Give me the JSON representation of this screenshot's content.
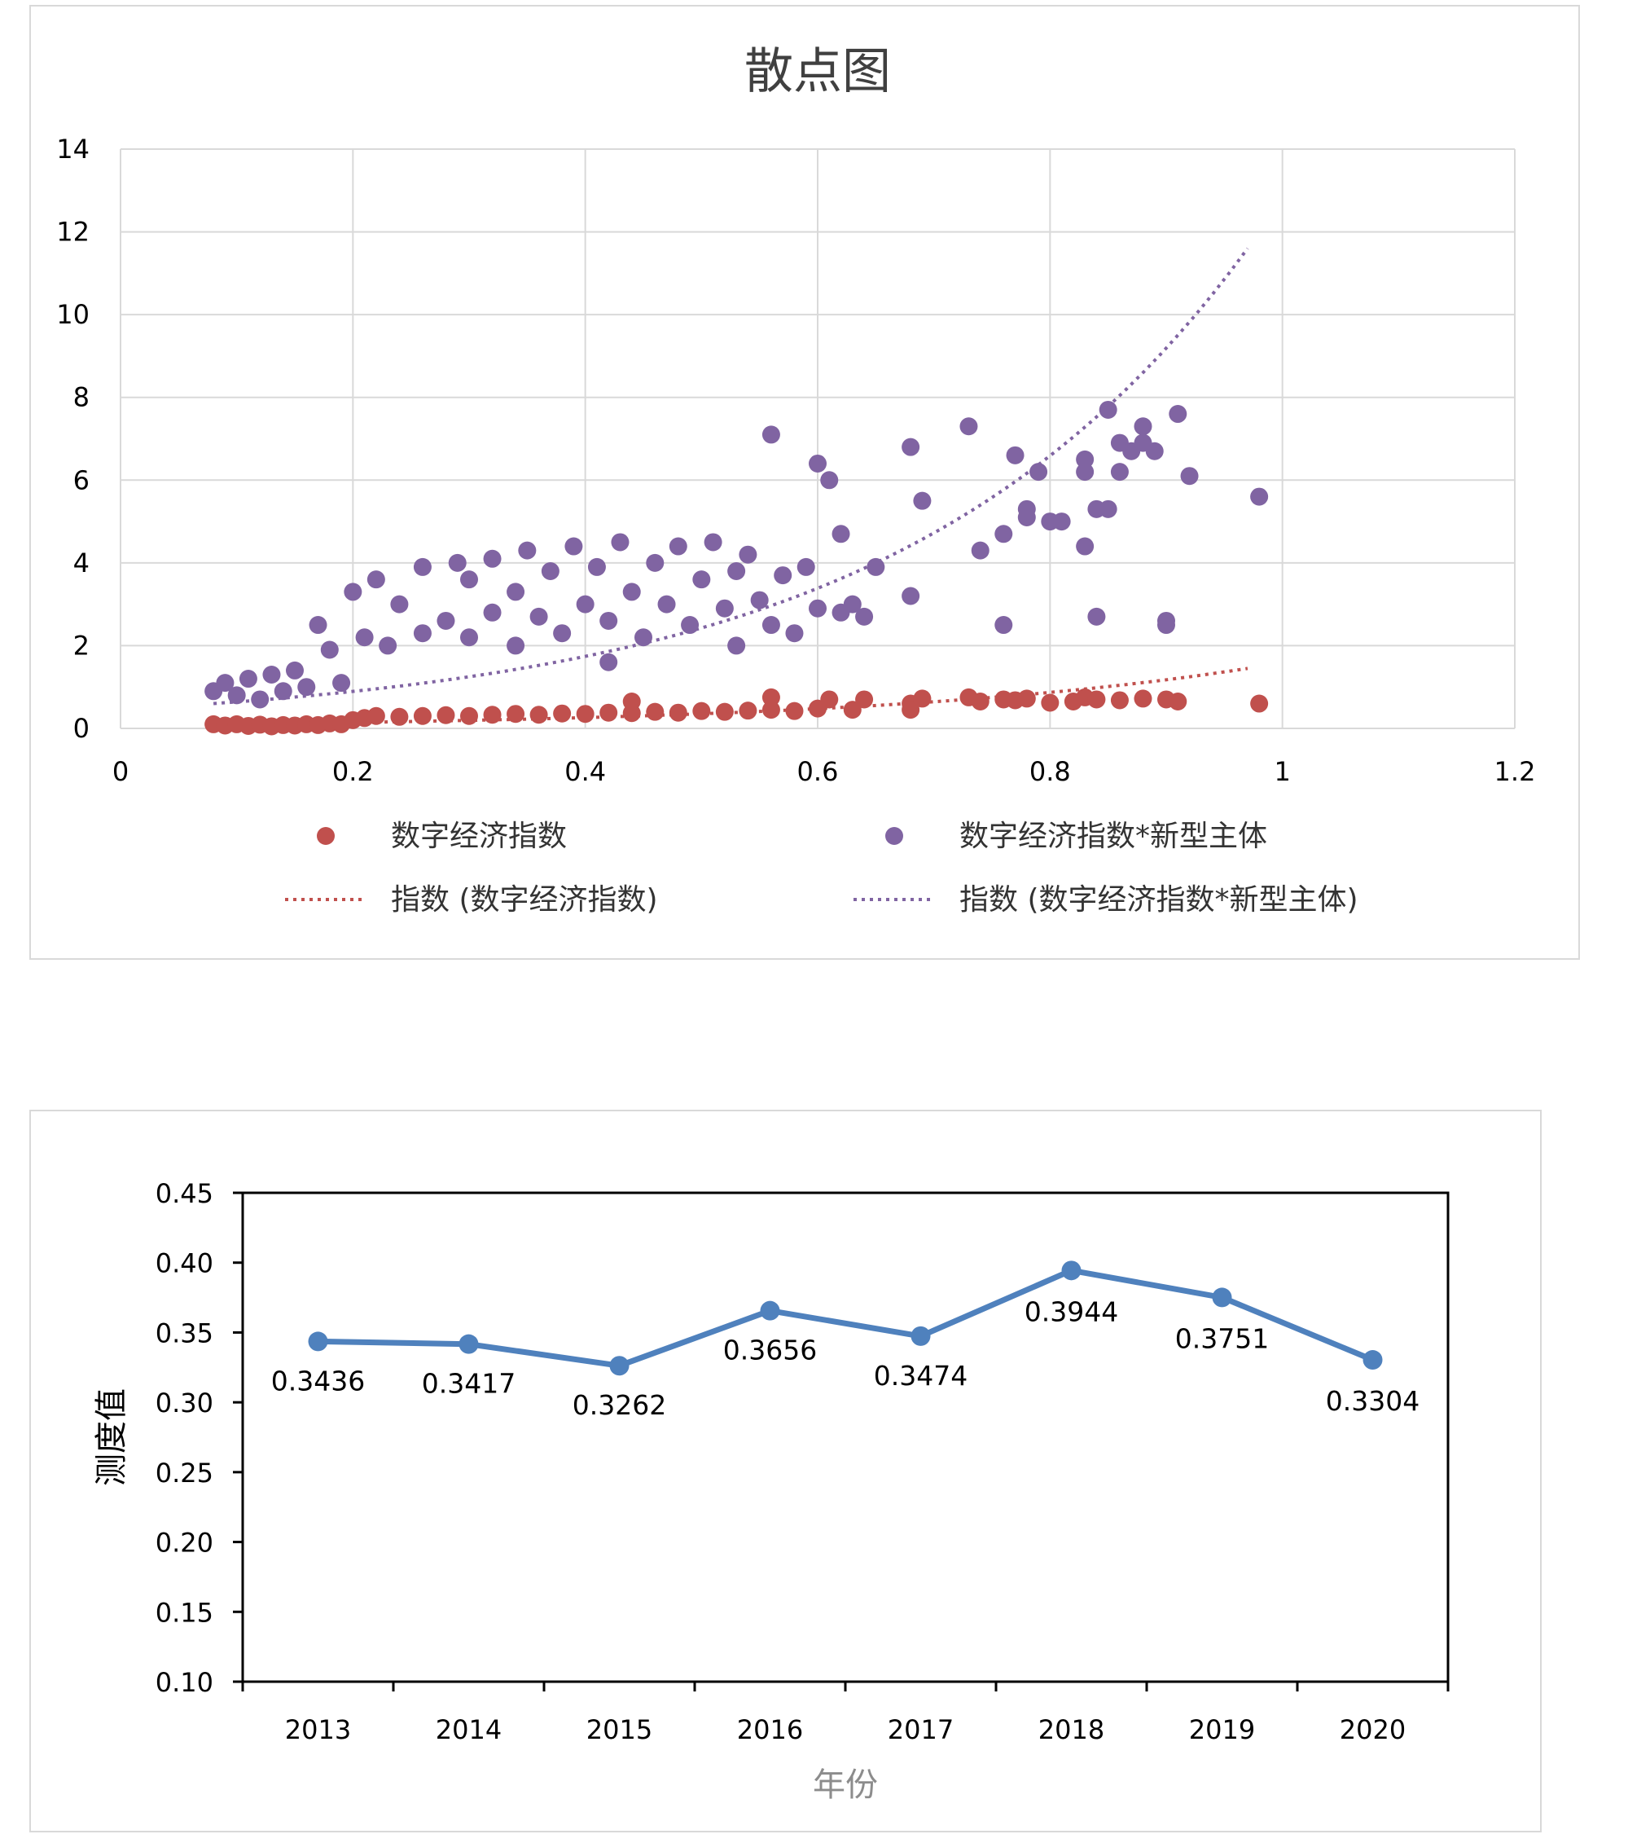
{
  "chart_data": [
    {
      "type": "scatter",
      "title": "散点图",
      "xlabel": "",
      "ylabel": "",
      "xlim": [
        0,
        1.2
      ],
      "ylim": [
        0,
        14
      ],
      "x_ticks": [
        "0",
        "0.2",
        "0.4",
        "0.6",
        "0.8",
        "1",
        "1.2"
      ],
      "y_ticks": [
        "0",
        "2",
        "4",
        "6",
        "8",
        "10",
        "12",
        "14"
      ],
      "grid": true,
      "legend": [
        {
          "label": "数字经济指数",
          "type": "marker",
          "color": "#c0504d"
        },
        {
          "label": "数字经济指数*新型主体",
          "type": "marker",
          "color": "#8064a2"
        },
        {
          "label": "指数 (数字经济指数)",
          "type": "dotted-line",
          "color": "#c0504d"
        },
        {
          "label": "指数 (数字经济指数*新型主体)",
          "type": "dotted-line",
          "color": "#8064a2"
        }
      ],
      "series": [
        {
          "name": "数字经济指数",
          "color": "#c0504d",
          "points": [
            [
              0.08,
              0.1
            ],
            [
              0.09,
              0.07
            ],
            [
              0.1,
              0.1
            ],
            [
              0.11,
              0.06
            ],
            [
              0.12,
              0.09
            ],
            [
              0.13,
              0.05
            ],
            [
              0.14,
              0.08
            ],
            [
              0.15,
              0.07
            ],
            [
              0.16,
              0.1
            ],
            [
              0.17,
              0.08
            ],
            [
              0.18,
              0.12
            ],
            [
              0.19,
              0.1
            ],
            [
              0.2,
              0.2
            ],
            [
              0.21,
              0.25
            ],
            [
              0.22,
              0.3
            ],
            [
              0.24,
              0.28
            ],
            [
              0.26,
              0.3
            ],
            [
              0.28,
              0.32
            ],
            [
              0.3,
              0.3
            ],
            [
              0.32,
              0.33
            ],
            [
              0.34,
              0.35
            ],
            [
              0.36,
              0.33
            ],
            [
              0.38,
              0.36
            ],
            [
              0.4,
              0.35
            ],
            [
              0.42,
              0.38
            ],
            [
              0.44,
              0.37
            ],
            [
              0.44,
              0.65
            ],
            [
              0.46,
              0.4
            ],
            [
              0.48,
              0.38
            ],
            [
              0.5,
              0.42
            ],
            [
              0.52,
              0.4
            ],
            [
              0.54,
              0.43
            ],
            [
              0.56,
              0.45
            ],
            [
              0.56,
              0.75
            ],
            [
              0.58,
              0.42
            ],
            [
              0.6,
              0.48
            ],
            [
              0.61,
              0.7
            ],
            [
              0.63,
              0.45
            ],
            [
              0.64,
              0.7
            ],
            [
              0.68,
              0.6
            ],
            [
              0.68,
              0.45
            ],
            [
              0.69,
              0.72
            ],
            [
              0.73,
              0.75
            ],
            [
              0.74,
              0.65
            ],
            [
              0.76,
              0.7
            ],
            [
              0.77,
              0.68
            ],
            [
              0.78,
              0.72
            ],
            [
              0.8,
              0.62
            ],
            [
              0.82,
              0.65
            ],
            [
              0.83,
              0.75
            ],
            [
              0.84,
              0.7
            ],
            [
              0.86,
              0.68
            ],
            [
              0.88,
              0.72
            ],
            [
              0.9,
              0.7
            ],
            [
              0.91,
              0.65
            ],
            [
              0.98,
              0.6
            ]
          ]
        },
        {
          "name": "数字经济指数*新型主体",
          "color": "#8064a2",
          "points": [
            [
              0.08,
              0.9
            ],
            [
              0.09,
              1.1
            ],
            [
              0.1,
              0.8
            ],
            [
              0.11,
              1.2
            ],
            [
              0.12,
              0.7
            ],
            [
              0.13,
              1.3
            ],
            [
              0.14,
              0.9
            ],
            [
              0.15,
              1.4
            ],
            [
              0.16,
              1.0
            ],
            [
              0.17,
              2.5
            ],
            [
              0.18,
              1.9
            ],
            [
              0.19,
              1.1
            ],
            [
              0.2,
              3.3
            ],
            [
              0.21,
              2.2
            ],
            [
              0.22,
              3.6
            ],
            [
              0.23,
              2.0
            ],
            [
              0.24,
              3.0
            ],
            [
              0.26,
              2.3
            ],
            [
              0.26,
              3.9
            ],
            [
              0.28,
              2.6
            ],
            [
              0.29,
              4.0
            ],
            [
              0.3,
              2.2
            ],
            [
              0.3,
              3.6
            ],
            [
              0.32,
              2.8
            ],
            [
              0.32,
              4.1
            ],
            [
              0.34,
              2.0
            ],
            [
              0.34,
              3.3
            ],
            [
              0.35,
              4.3
            ],
            [
              0.36,
              2.7
            ],
            [
              0.37,
              3.8
            ],
            [
              0.38,
              2.3
            ],
            [
              0.39,
              4.4
            ],
            [
              0.4,
              3.0
            ],
            [
              0.41,
              3.9
            ],
            [
              0.42,
              1.6
            ],
            [
              0.42,
              2.6
            ],
            [
              0.43,
              4.5
            ],
            [
              0.44,
              3.3
            ],
            [
              0.45,
              2.2
            ],
            [
              0.46,
              4.0
            ],
            [
              0.47,
              3.0
            ],
            [
              0.48,
              4.4
            ],
            [
              0.49,
              2.5
            ],
            [
              0.5,
              3.6
            ],
            [
              0.51,
              4.5
            ],
            [
              0.52,
              2.9
            ],
            [
              0.53,
              2.0
            ],
            [
              0.53,
              3.8
            ],
            [
              0.54,
              4.2
            ],
            [
              0.55,
              3.1
            ],
            [
              0.56,
              2.5
            ],
            [
              0.56,
              7.1
            ],
            [
              0.57,
              3.7
            ],
            [
              0.58,
              2.3
            ],
            [
              0.59,
              3.9
            ],
            [
              0.6,
              2.9
            ],
            [
              0.6,
              6.4
            ],
            [
              0.61,
              6.0
            ],
            [
              0.62,
              4.7
            ],
            [
              0.62,
              2.8
            ],
            [
              0.63,
              3.0
            ],
            [
              0.64,
              2.7
            ],
            [
              0.65,
              3.9
            ],
            [
              0.68,
              6.8
            ],
            [
              0.68,
              3.2
            ],
            [
              0.69,
              5.5
            ],
            [
              0.73,
              7.3
            ],
            [
              0.74,
              4.3
            ],
            [
              0.76,
              2.5
            ],
            [
              0.76,
              4.7
            ],
            [
              0.77,
              6.6
            ],
            [
              0.78,
              5.3
            ],
            [
              0.78,
              5.1
            ],
            [
              0.79,
              6.2
            ],
            [
              0.8,
              5.0
            ],
            [
              0.81,
              5.0
            ],
            [
              0.83,
              4.4
            ],
            [
              0.83,
              6.2
            ],
            [
              0.83,
              6.5
            ],
            [
              0.84,
              2.7
            ],
            [
              0.84,
              5.3
            ],
            [
              0.85,
              5.3
            ],
            [
              0.85,
              7.7
            ],
            [
              0.86,
              6.9
            ],
            [
              0.86,
              6.2
            ],
            [
              0.87,
              6.7
            ],
            [
              0.88,
              6.9
            ],
            [
              0.88,
              7.3
            ],
            [
              0.89,
              6.7
            ],
            [
              0.9,
              2.6
            ],
            [
              0.9,
              2.5
            ],
            [
              0.91,
              7.6
            ],
            [
              0.92,
              6.1
            ],
            [
              0.98,
              5.6
            ]
          ]
        }
      ],
      "trendlines": [
        {
          "name": "指数 (数字经济指数)",
          "color": "#c0504d",
          "x_range": [
            0.08,
            0.97
          ],
          "y_range": [
            0.1,
            1.45
          ]
        },
        {
          "name": "指数 (数字经济指数*新型主体)",
          "color": "#8064a2",
          "x_range": [
            0.08,
            0.97
          ],
          "y_range": [
            0.6,
            11.6
          ]
        }
      ]
    },
    {
      "type": "line",
      "title": "",
      "xlabel": "年份",
      "ylabel": "测度值",
      "ylim": [
        0.1,
        0.45
      ],
      "y_ticks": [
        "0.10",
        "0.15",
        "0.20",
        "0.25",
        "0.30",
        "0.35",
        "0.40",
        "0.45"
      ],
      "categories": [
        "2013",
        "2014",
        "2015",
        "2016",
        "2017",
        "2018",
        "2019",
        "2020"
      ],
      "series": [
        {
          "name": "测度值",
          "color": "#4f81bd",
          "values": [
            0.3436,
            0.3417,
            0.3262,
            0.3656,
            0.3474,
            0.3944,
            0.3751,
            0.3304
          ]
        }
      ],
      "data_labels": [
        "0.3436",
        "0.3417",
        "0.3262",
        "0.3656",
        "0.3474",
        "0.3944",
        "0.3751",
        "0.3304"
      ]
    }
  ]
}
